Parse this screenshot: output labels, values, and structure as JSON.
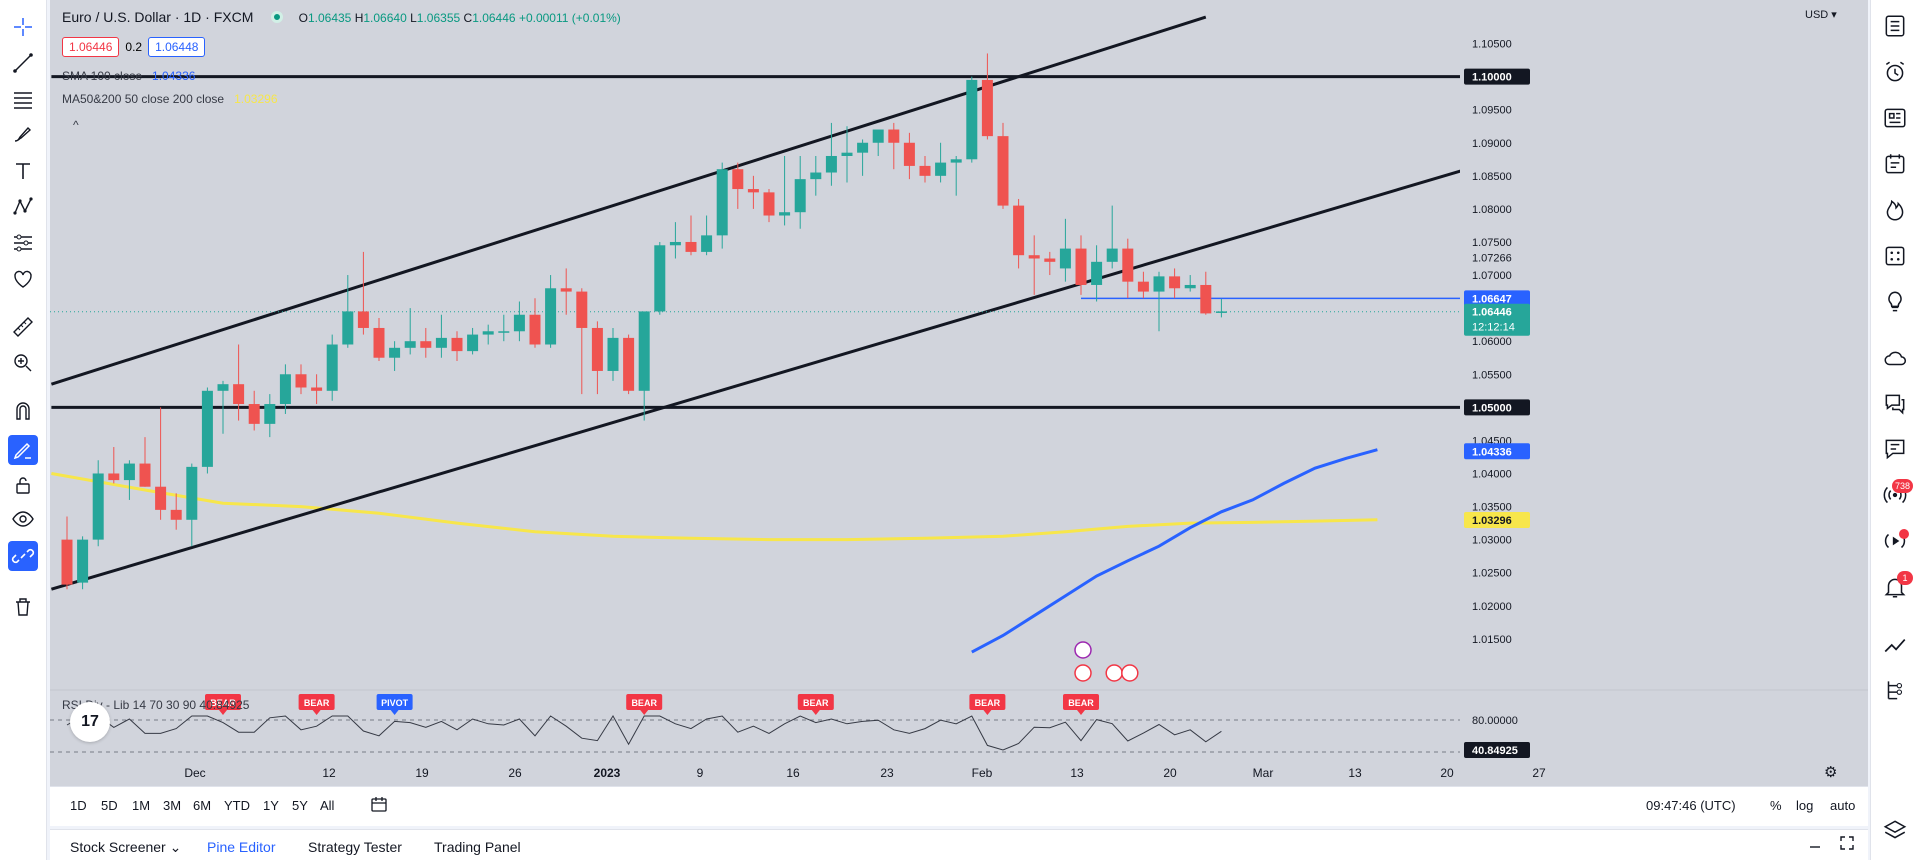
{
  "chart_data": {
    "type": "candlestick",
    "title": "Euro / U.S. Dollar · 1D · FXCM",
    "currency": "USD",
    "ohlc": {
      "o_label": "O",
      "o": "1.06435",
      "h_label": "H",
      "h": "1.06640",
      "l_label": "L",
      "l": "1.06355",
      "c_label": "C",
      "c": "1.06446",
      "change": "+0.00011 (+0.01%)"
    },
    "sell_price": "1.06446",
    "spread": "0.2",
    "buy_price": "1.06448",
    "ylim": [
      1.0115,
      1.1075
    ],
    "y_ticks": [
      "1.10500",
      "1.10000",
      "1.09500",
      "1.09000",
      "1.08500",
      "1.08000",
      "1.07500",
      "1.07266",
      "1.07000",
      "1.06647",
      "1.06446",
      "1.06000",
      "1.05500",
      "1.05000",
      "1.04500",
      "1.04336",
      "1.04000",
      "1.03500",
      "1.03296",
      "1.03000",
      "1.02500",
      "1.02000",
      "1.01500"
    ],
    "price_tags": [
      {
        "value": "1.10000",
        "kind": "level"
      },
      {
        "value": "1.06647",
        "kind": "support"
      },
      {
        "value": "1.06446",
        "kind": "last",
        "countdown": "12:12:14"
      },
      {
        "value": "1.05000",
        "kind": "level"
      },
      {
        "value": "1.04336",
        "kind": "sma100"
      },
      {
        "value": "1.03296",
        "kind": "ma200"
      }
    ],
    "x_ticks": [
      "Dec",
      "12",
      "19",
      "26",
      "2023",
      "9",
      "16",
      "23",
      "Feb",
      "13",
      "20",
      "Mar",
      "13",
      "20",
      "27"
    ],
    "candles": [
      [
        1.03,
        1.0335,
        1.0225,
        1.0232
      ],
      [
        1.0235,
        1.0305,
        1.0225,
        1.03
      ],
      [
        1.03,
        1.042,
        1.029,
        1.04
      ],
      [
        1.04,
        1.044,
        1.0385,
        1.039
      ],
      [
        1.039,
        1.042,
        1.036,
        1.0415
      ],
      [
        1.0415,
        1.0455,
        1.038,
        1.038
      ],
      [
        1.038,
        1.05,
        1.033,
        1.0345
      ],
      [
        1.0345,
        1.037,
        1.0315,
        1.033
      ],
      [
        1.033,
        1.0415,
        1.029,
        1.041
      ],
      [
        1.041,
        1.053,
        1.04,
        1.0525
      ],
      [
        1.0525,
        1.054,
        1.046,
        1.0535
      ],
      [
        1.0535,
        1.0595,
        1.048,
        1.0505
      ],
      [
        1.0505,
        1.0525,
        1.0465,
        1.0475
      ],
      [
        1.0475,
        1.052,
        1.0455,
        1.0505
      ],
      [
        1.0505,
        1.0565,
        1.049,
        1.055
      ],
      [
        1.055,
        1.0565,
        1.052,
        1.053
      ],
      [
        1.053,
        1.055,
        1.0505,
        1.0525
      ],
      [
        1.0525,
        1.061,
        1.051,
        1.0595
      ],
      [
        1.0595,
        1.07,
        1.059,
        1.0645
      ],
      [
        1.0645,
        1.0735,
        1.061,
        1.062
      ],
      [
        1.062,
        1.0635,
        1.057,
        1.0575
      ],
      [
        1.0575,
        1.06,
        1.0555,
        1.059
      ],
      [
        1.059,
        1.065,
        1.058,
        1.06
      ],
      [
        1.06,
        1.062,
        1.0575,
        1.059
      ],
      [
        1.059,
        1.064,
        1.0575,
        1.0605
      ],
      [
        1.0605,
        1.0615,
        1.057,
        1.0585
      ],
      [
        1.0585,
        1.062,
        1.058,
        1.061
      ],
      [
        1.061,
        1.0625,
        1.0595,
        1.0615
      ],
      [
        1.0615,
        1.064,
        1.06,
        1.0615
      ],
      [
        1.0615,
        1.066,
        1.06,
        1.064
      ],
      [
        1.064,
        1.0665,
        1.059,
        1.0595
      ],
      [
        1.0595,
        1.07,
        1.059,
        1.068
      ],
      [
        1.068,
        1.071,
        1.064,
        1.0675
      ],
      [
        1.0675,
        1.068,
        1.052,
        1.062
      ],
      [
        1.062,
        1.063,
        1.052,
        1.0555
      ],
      [
        1.0555,
        1.062,
        1.054,
        1.0605
      ],
      [
        1.0605,
        1.061,
        1.052,
        1.0525
      ],
      [
        1.0525,
        1.064,
        1.048,
        1.0645
      ],
      [
        1.0645,
        1.075,
        1.064,
        1.0745
      ],
      [
        1.0745,
        1.078,
        1.0725,
        1.075
      ],
      [
        1.075,
        1.079,
        1.073,
        1.0735
      ],
      [
        1.0735,
        1.079,
        1.073,
        1.076
      ],
      [
        1.076,
        1.087,
        1.074,
        1.086
      ],
      [
        1.086,
        1.087,
        1.08,
        1.083
      ],
      [
        1.083,
        1.085,
        1.08,
        1.0825
      ],
      [
        1.0825,
        1.083,
        1.078,
        1.079
      ],
      [
        1.079,
        1.088,
        1.0775,
        1.0795
      ],
      [
        1.0795,
        1.088,
        1.077,
        1.0845
      ],
      [
        1.0845,
        1.088,
        1.082,
        1.0855
      ],
      [
        1.0855,
        1.093,
        1.0835,
        1.088
      ],
      [
        1.088,
        1.0925,
        1.084,
        1.0885
      ],
      [
        1.0885,
        1.0905,
        1.085,
        1.09
      ],
      [
        1.09,
        1.0915,
        1.088,
        1.092
      ],
      [
        1.092,
        1.093,
        1.086,
        1.09
      ],
      [
        1.09,
        1.0915,
        1.0845,
        1.0865
      ],
      [
        1.0865,
        1.088,
        1.084,
        1.085
      ],
      [
        1.085,
        1.09,
        1.084,
        1.087
      ],
      [
        1.087,
        1.088,
        1.082,
        1.0875
      ],
      [
        1.0875,
        1.1,
        1.087,
        1.0995
      ],
      [
        1.0995,
        1.1035,
        1.0905,
        1.091
      ],
      [
        1.091,
        1.093,
        1.08,
        1.0805
      ],
      [
        1.0805,
        1.0815,
        1.071,
        1.073
      ],
      [
        1.073,
        1.076,
        1.067,
        1.0725
      ],
      [
        1.0725,
        1.0735,
        1.07,
        1.072
      ],
      [
        1.071,
        1.0785,
        1.069,
        1.074
      ],
      [
        1.074,
        1.076,
        1.067,
        1.0685
      ],
      [
        1.0685,
        1.0745,
        1.066,
        1.072
      ],
      [
        1.072,
        1.0805,
        1.071,
        1.074
      ],
      [
        1.074,
        1.0755,
        1.0665,
        1.069
      ],
      [
        1.069,
        1.0705,
        1.0665,
        1.0675
      ],
      [
        1.0675,
        1.0705,
        1.0615,
        1.0698
      ],
      [
        1.0698,
        1.071,
        1.0665,
        1.068
      ],
      [
        1.068,
        1.07,
        1.0675,
        1.0685
      ],
      [
        1.0685,
        1.0705,
        1.064,
        1.0642
      ],
      [
        1.0643,
        1.0664,
        1.0636,
        1.0645
      ]
    ],
    "sma100": {
      "name": "SMA 100 close",
      "value": "1.04336",
      "color": "#2962ff",
      "points": [
        [
          58,
          1.013
        ],
        [
          60,
          1.0155
        ],
        [
          62,
          1.0185
        ],
        [
          64,
          1.0215
        ],
        [
          66,
          1.0245
        ],
        [
          68,
          1.0268
        ],
        [
          70,
          1.029
        ],
        [
          72,
          1.0318
        ],
        [
          74,
          1.0342
        ],
        [
          76,
          1.036
        ],
        [
          78,
          1.0385
        ],
        [
          80,
          1.0408
        ],
        [
          82,
          1.0423
        ],
        [
          84,
          1.0436
        ]
      ]
    },
    "ma200": {
      "name": "MA50&200 50 close 200 close",
      "value": "1.03296",
      "color": "#f7e64b",
      "points": [
        [
          -1,
          1.04
        ],
        [
          5,
          1.0375
        ],
        [
          10,
          1.0355
        ],
        [
          15,
          1.035
        ],
        [
          20,
          1.034
        ],
        [
          25,
          1.0325
        ],
        [
          30,
          1.0312
        ],
        [
          35,
          1.0305
        ],
        [
          40,
          1.0302
        ],
        [
          45,
          1.03
        ],
        [
          50,
          1.03
        ],
        [
          55,
          1.0302
        ],
        [
          60,
          1.0305
        ],
        [
          64,
          1.0312
        ],
        [
          68,
          1.032
        ],
        [
          72,
          1.0325
        ],
        [
          76,
          1.0326
        ],
        [
          80,
          1.0328
        ],
        [
          84,
          1.033
        ]
      ]
    },
    "trendlines": [
      {
        "name": "channel-upper",
        "from": [
          -1,
          1.0535
        ],
        "to": [
          73,
          1.109
        ]
      },
      {
        "name": "channel-lower",
        "from": [
          -1,
          1.0225
        ],
        "to": [
          91,
          1.0869
        ]
      },
      {
        "name": "level-1.10000",
        "from": [
          -1,
          1.1
        ],
        "to": [
          115,
          1.1
        ]
      },
      {
        "name": "level-1.05000",
        "from": [
          -1,
          1.05
        ],
        "to": [
          115,
          1.05
        ]
      },
      {
        "name": "support-1.06647",
        "from": [
          65,
          1.06647
        ],
        "to": [
          115,
          1.06647
        ]
      }
    ],
    "rsi": {
      "label": "RSI Div - Lib 14 70 30 90",
      "value": "40.84925",
      "upper_level": "80.00000",
      "lower_level": "40.84925",
      "signals": [
        {
          "text": "BEAR",
          "index": 10
        },
        {
          "text": "BEAR",
          "index": 16
        },
        {
          "text": "PIVOT",
          "index": 21
        },
        {
          "text": "BEAR",
          "index": 37
        },
        {
          "text": "BEAR",
          "index": 48
        },
        {
          "text": "BEAR",
          "index": 59
        },
        {
          "text": "BEAR",
          "index": 65
        }
      ]
    }
  },
  "legend": {
    "symbol": "Euro / U.S. Dollar · 1D · FXCM",
    "sma_label": "SMA 100 close",
    "sma_value": "1.04336",
    "ma_label": "MA50&200 50 close 200 close",
    "ma_value": "1.03296",
    "collapse": "^"
  },
  "logo": "17",
  "currency_label": "USD ▾",
  "range_buttons": [
    "1D",
    "5D",
    "1M",
    "3M",
    "6M",
    "YTD",
    "1Y",
    "5Y",
    "All"
  ],
  "clock": "09:47:46 (UTC)",
  "scale_options": [
    "%",
    "log",
    "auto"
  ],
  "bottom_tabs": [
    "Stock Screener",
    "Pine Editor",
    "Strategy Tester",
    "Trading Panel"
  ],
  "bottom_tab_active": "Pine Editor",
  "tabs_dropdown": "⌄",
  "sidebar": {
    "badge_alerts": "738",
    "badge_notifications": "1"
  },
  "colors": {
    "up": "#26a69a",
    "down": "#ef5350",
    "support": "#2962ff",
    "ma200": "#f7e64b",
    "background": "#d1d4dc"
  }
}
